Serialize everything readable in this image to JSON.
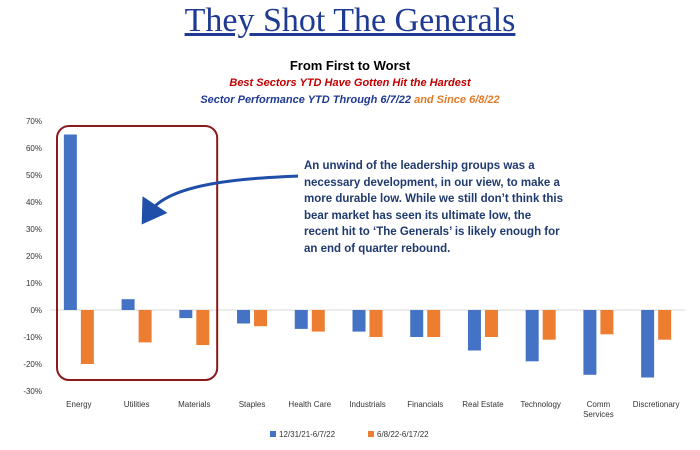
{
  "header": {
    "headline": "They Shot The Generals",
    "title": "From First to Worst",
    "subtitle": "Best Sectors YTD Have Gotten Hit the Hardest",
    "subtitle2_part1": "Sector Performance YTD Through 6/7/22",
    "subtitle2_part2": " and Since 6/8/22"
  },
  "colors": {
    "headline": "#1f3a93",
    "subtitle_red": "#c00000",
    "subtitle_blue": "#1f3a93",
    "subtitle_orange": "#e07b28",
    "series1": "#4472c4",
    "series2": "#ed7d31",
    "highlight_box": "#8b1a1a",
    "arrow": "#1f4fa8",
    "callout_text": "#1f3a6e"
  },
  "annotation": {
    "text": "An unwind of the leadership groups was a necessary development, in our view, to make a more durable low. While we still don’t think this bear market has seen its ultimate low, the recent hit to ‘The Generals’ is likely enough for an end of quarter rebound."
  },
  "chart_data": {
    "type": "bar",
    "categories": [
      "Energy",
      "Utilities",
      "Materials",
      "Staples",
      "Health Care",
      "Industrials",
      "Financials",
      "Real Estate",
      "Technology",
      "Comm Services",
      "Discretionary"
    ],
    "series": [
      {
        "name": "12/31/21-6/7/22",
        "values": [
          65,
          4,
          -3,
          -5,
          -7,
          -8,
          -10,
          -15,
          -19,
          -24,
          -25
        ]
      },
      {
        "name": "6/8/22-6/17/22",
        "values": [
          -20,
          -12,
          -13,
          -6,
          -8,
          -10,
          -10,
          -10,
          -11,
          -9,
          -11
        ]
      }
    ],
    "ylim": [
      -30,
      70
    ],
    "yticks": [
      -30,
      -20,
      -10,
      0,
      10,
      20,
      30,
      40,
      50,
      60,
      70
    ],
    "ytick_labels": [
      "-30%",
      "-20%",
      "-10%",
      "0%",
      "10%",
      "20%",
      "30%",
      "40%",
      "50%",
      "60%",
      "70%"
    ],
    "highlighted_categories": [
      "Energy",
      "Utilities",
      "Materials"
    ],
    "legend_position": "bottom-center",
    "grid": false
  }
}
